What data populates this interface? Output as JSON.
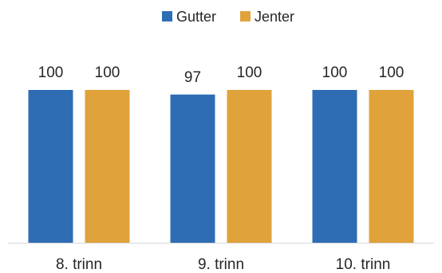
{
  "chart_data": {
    "type": "bar",
    "title": "",
    "xlabel": "",
    "ylabel": "",
    "categories": [
      "8. trinn",
      "9. trinn",
      "10. trinn"
    ],
    "series": [
      {
        "name": "Gutter",
        "color": "#2E6DB4",
        "values": [
          100,
          97,
          100
        ],
        "labels": [
          "100",
          "97",
          "100"
        ]
      },
      {
        "name": "Jenter",
        "color": "#E0A23B",
        "values": [
          100,
          100,
          100
        ],
        "labels": [
          "100",
          "100",
          "100"
        ]
      }
    ],
    "ylim": [
      0,
      100
    ],
    "grid": false,
    "legend_position": "top-center",
    "data_labels": true
  }
}
